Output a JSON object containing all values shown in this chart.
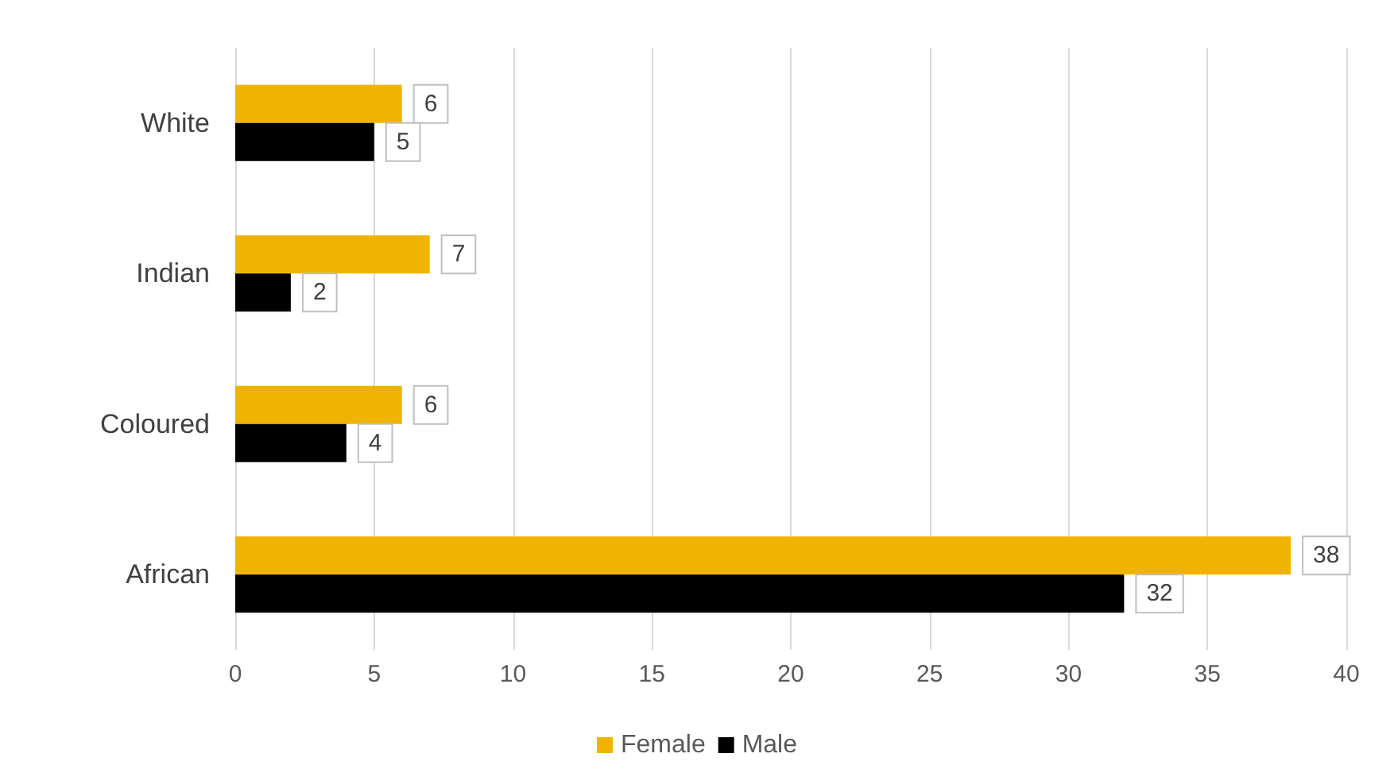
{
  "chart_data": {
    "type": "bar",
    "orientation": "horizontal",
    "categories": [
      "White",
      "Indian",
      "Coloured",
      "African"
    ],
    "series": [
      {
        "name": "Female",
        "color": "#f0b400",
        "values": [
          6,
          7,
          6,
          38
        ]
      },
      {
        "name": "Male",
        "color": "#000000",
        "values": [
          5,
          2,
          4,
          32
        ]
      }
    ],
    "xlim": [
      0,
      40
    ],
    "xticks": [
      0,
      5,
      10,
      15,
      20,
      25,
      30,
      35,
      40
    ],
    "grid": "x",
    "legend": "bottom",
    "data_labels": true
  }
}
